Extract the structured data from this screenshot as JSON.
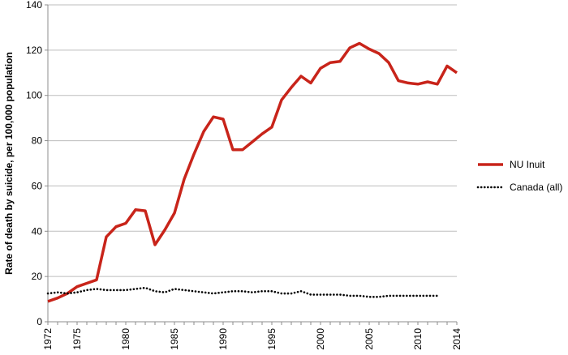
{
  "chart_data": {
    "type": "line",
    "ylabel": "Rate of death by suicide, per 100,000 population",
    "xlabel": "",
    "xlim": [
      1972,
      2014
    ],
    "ylim": [
      0,
      140
    ],
    "yticks": [
      0,
      20,
      40,
      60,
      80,
      100,
      120,
      140
    ],
    "xticks": [
      1972,
      1975,
      1980,
      1985,
      1990,
      1995,
      2000,
      2005,
      2010,
      2014
    ],
    "grid": "horizontal",
    "legend_position": "right",
    "series": [
      {
        "name": "NU Inuit",
        "color": "#c8241a",
        "style": "solid",
        "x": [
          1972,
          1973,
          1974,
          1975,
          1976,
          1977,
          1978,
          1979,
          1980,
          1981,
          1982,
          1983,
          1984,
          1985,
          1986,
          1987,
          1988,
          1989,
          1990,
          1991,
          1992,
          1993,
          1994,
          1995,
          1996,
          1997,
          1998,
          1999,
          2000,
          2001,
          2002,
          2003,
          2004,
          2005,
          2006,
          2007,
          2008,
          2009,
          2010,
          2011,
          2012,
          2013,
          2014
        ],
        "values": [
          9,
          10.5,
          12.5,
          15.5,
          17,
          18.5,
          37.5,
          42,
          43.5,
          49.5,
          49,
          34,
          40.5,
          48,
          63,
          74,
          84,
          90.5,
          89.5,
          76,
          76,
          79.5,
          83,
          86,
          98,
          103.5,
          108.5,
          105.5,
          112,
          114.5,
          115,
          121,
          123,
          120.5,
          118.5,
          114.5,
          106.5,
          105.5,
          105,
          106,
          105,
          113,
          110
        ]
      },
      {
        "name": "Canada (all)",
        "color": "#000000",
        "style": "dotted",
        "x": [
          1972,
          1973,
          1974,
          1975,
          1976,
          1977,
          1978,
          1979,
          1980,
          1981,
          1982,
          1983,
          1984,
          1985,
          1986,
          1987,
          1988,
          1989,
          1990,
          1991,
          1992,
          1993,
          1994,
          1995,
          1996,
          1997,
          1998,
          1999,
          2000,
          2001,
          2002,
          2003,
          2004,
          2005,
          2006,
          2007,
          2008,
          2009,
          2010,
          2011,
          2012
        ],
        "values": [
          12.5,
          13,
          12.5,
          13,
          14,
          14.5,
          14,
          14,
          14,
          14.5,
          15,
          13.5,
          13,
          14.5,
          14,
          13.5,
          13,
          12.5,
          13,
          13.5,
          13.5,
          13,
          13.5,
          13.5,
          12.5,
          12.5,
          13.5,
          12,
          12,
          12,
          12,
          11.5,
          11.5,
          11,
          11,
          11.5,
          11.5,
          11.5,
          11.5,
          11.5,
          11.5
        ]
      }
    ]
  }
}
